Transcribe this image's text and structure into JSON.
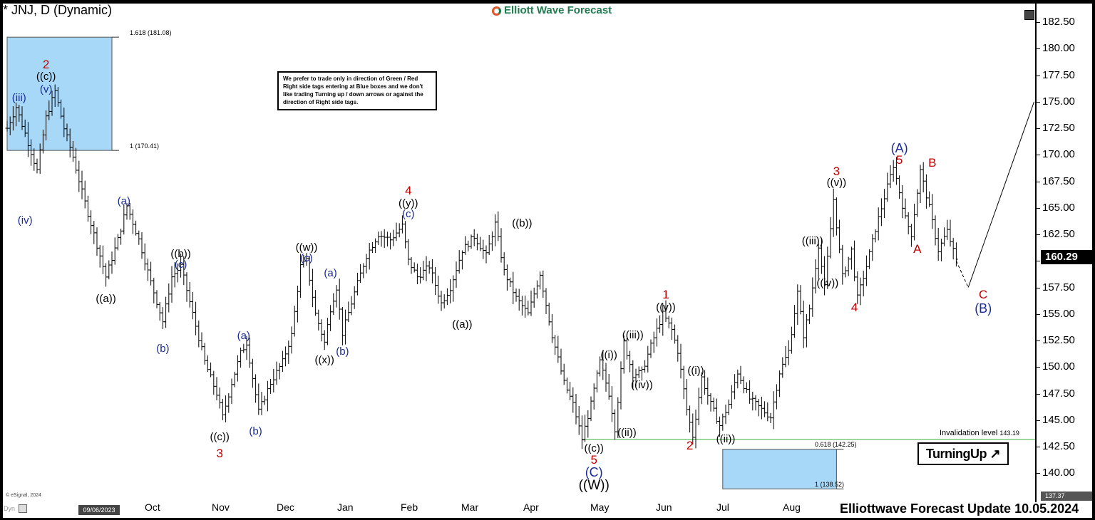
{
  "title": "* JNJ, D (Dynamic)",
  "brand": "Elliott Wave Forecast",
  "note": "We prefer to trade only in direction of Green / Red Right side tags entering at Blue boxes and we don't like trading Turning up / down arrows or against the direction of Right side tags.",
  "fib_labels": [
    "1.618 (181.08)",
    "1 (170.41)",
    "0.618 (142.25)",
    "1 (138.52)"
  ],
  "invalidation": {
    "label": "Invalidation level",
    "value": "143.19"
  },
  "badge": "TurningUp",
  "last_price": "160.29",
  "axis_low_tag": "137.37",
  "credit": "© eSignal, 2024",
  "dyn_label": "Dyn",
  "start_date": "09/06/2023",
  "footer": "Elliottwave Forecast Update 10.05.2024",
  "colors": {
    "blue_box": "#a8d8f8",
    "invalidation_line": "#5fc15f",
    "red_labels": "#c00000",
    "blue_labels": "#1a2a9a"
  },
  "chart_data": {
    "type": "ohlc",
    "symbol": "JNJ",
    "timeframe": "D",
    "ylim": [
      137.37,
      183.5
    ],
    "yticks": [
      140.0,
      142.5,
      145.0,
      147.5,
      150.0,
      152.5,
      155.0,
      157.5,
      160.0,
      162.5,
      165.0,
      167.5,
      170.0,
      172.5,
      175.0,
      177.5,
      180.0,
      182.5
    ],
    "months": [
      "Oct",
      "Nov",
      "Dec",
      "Jan",
      "Feb",
      "Mar",
      "Apr",
      "May",
      "Jun",
      "Jul",
      "Aug"
    ],
    "last_price": 160.29,
    "path": [
      {
        "day": 0,
        "price": 172.5
      },
      {
        "day": 3,
        "price": 174.5
      },
      {
        "day": 6,
        "price": 172.0
      },
      {
        "day": 10,
        "price": 168.5
      },
      {
        "day": 13,
        "price": 173.5
      },
      {
        "day": 16,
        "price": 176.0
      },
      {
        "day": 19,
        "price": 172.5
      },
      {
        "day": 22,
        "price": 169.8
      },
      {
        "day": 25,
        "price": 166.5
      },
      {
        "day": 29,
        "price": 162.5
      },
      {
        "day": 33,
        "price": 158.5
      },
      {
        "day": 37,
        "price": 162.0
      },
      {
        "day": 40,
        "price": 165.2
      },
      {
        "day": 44,
        "price": 162.0
      },
      {
        "day": 48,
        "price": 158.0
      },
      {
        "day": 52,
        "price": 154.3
      },
      {
        "day": 55,
        "price": 158.5
      },
      {
        "day": 58,
        "price": 159.5
      },
      {
        "day": 62,
        "price": 155.0
      },
      {
        "day": 66,
        "price": 150.5
      },
      {
        "day": 70,
        "price": 147.5
      },
      {
        "day": 72,
        "price": 145.3
      },
      {
        "day": 75,
        "price": 148.5
      },
      {
        "day": 78,
        "price": 151.3
      },
      {
        "day": 80,
        "price": 152.3
      },
      {
        "day": 82,
        "price": 149.0
      },
      {
        "day": 84,
        "price": 145.8
      },
      {
        "day": 88,
        "price": 148.5
      },
      {
        "day": 92,
        "price": 150.5
      },
      {
        "day": 95,
        "price": 153.0
      },
      {
        "day": 98,
        "price": 159.5
      },
      {
        "day": 100,
        "price": 160.0
      },
      {
        "day": 103,
        "price": 155.0
      },
      {
        "day": 106,
        "price": 152.3
      },
      {
        "day": 108,
        "price": 155.5
      },
      {
        "day": 110,
        "price": 157.5
      },
      {
        "day": 112,
        "price": 153.2
      },
      {
        "day": 116,
        "price": 157.0
      },
      {
        "day": 120,
        "price": 160.5
      },
      {
        "day": 124,
        "price": 162.5
      },
      {
        "day": 128,
        "price": 162.0
      },
      {
        "day": 132,
        "price": 163.3
      },
      {
        "day": 134,
        "price": 160.0
      },
      {
        "day": 137,
        "price": 158.5
      },
      {
        "day": 141,
        "price": 159.5
      },
      {
        "day": 145,
        "price": 156.0
      },
      {
        "day": 148,
        "price": 157.5
      },
      {
        "day": 152,
        "price": 161.0
      },
      {
        "day": 156,
        "price": 162.3
      },
      {
        "day": 160,
        "price": 160.5
      },
      {
        "day": 163,
        "price": 163.5
      },
      {
        "day": 166,
        "price": 159.0
      },
      {
        "day": 170,
        "price": 156.5
      },
      {
        "day": 174,
        "price": 155.0
      },
      {
        "day": 178,
        "price": 158.8
      },
      {
        "day": 182,
        "price": 153.0
      },
      {
        "day": 186,
        "price": 148.5
      },
      {
        "day": 189,
        "price": 146.5
      },
      {
        "day": 192,
        "price": 143.2
      },
      {
        "day": 195,
        "price": 146.5
      },
      {
        "day": 198,
        "price": 150.5
      },
      {
        "day": 201,
        "price": 147.5
      },
      {
        "day": 203,
        "price": 144.2
      },
      {
        "day": 206,
        "price": 152.3
      },
      {
        "day": 209,
        "price": 149.3
      },
      {
        "day": 212,
        "price": 149.5
      },
      {
        "day": 215,
        "price": 152.0
      },
      {
        "day": 219,
        "price": 155.0
      },
      {
        "day": 222,
        "price": 153.5
      },
      {
        "day": 224,
        "price": 151.5
      },
      {
        "day": 227,
        "price": 146.0
      },
      {
        "day": 229,
        "price": 143.5
      },
      {
        "day": 232,
        "price": 149.0
      },
      {
        "day": 235,
        "price": 146.5
      },
      {
        "day": 238,
        "price": 144.5
      },
      {
        "day": 241,
        "price": 146.5
      },
      {
        "day": 244,
        "price": 149.5
      },
      {
        "day": 248,
        "price": 147.0
      },
      {
        "day": 252,
        "price": 146.0
      },
      {
        "day": 255,
        "price": 145.3
      },
      {
        "day": 258,
        "price": 149.5
      },
      {
        "day": 261,
        "price": 151.5
      },
      {
        "day": 264,
        "price": 157.0
      },
      {
        "day": 266,
        "price": 153.0
      },
      {
        "day": 268,
        "price": 155.5
      },
      {
        "day": 271,
        "price": 161.5
      },
      {
        "day": 273,
        "price": 157.5
      },
      {
        "day": 276,
        "price": 165.8
      },
      {
        "day": 279,
        "price": 158.5
      },
      {
        "day": 282,
        "price": 161.0
      },
      {
        "day": 284,
        "price": 156.5
      },
      {
        "day": 287,
        "price": 159.5
      },
      {
        "day": 290,
        "price": 163.0
      },
      {
        "day": 293,
        "price": 166.0
      },
      {
        "day": 296,
        "price": 169.0
      },
      {
        "day": 298,
        "price": 166.5
      },
      {
        "day": 300,
        "price": 164.0
      },
      {
        "day": 302,
        "price": 162.5
      },
      {
        "day": 305,
        "price": 168.5
      },
      {
        "day": 308,
        "price": 165.0
      },
      {
        "day": 311,
        "price": 161.0
      },
      {
        "day": 314,
        "price": 162.8
      },
      {
        "day": 317,
        "price": 160.0
      }
    ],
    "projection": [
      {
        "day": 317,
        "price": 160.0
      },
      {
        "day": 321,
        "price": 157.5
      },
      {
        "day": 343,
        "price": 175.0
      }
    ],
    "zones": [
      {
        "name": "blue-box-top",
        "day_from": 0,
        "day_to": 35,
        "price_from": 170.41,
        "price_to": 181.08
      },
      {
        "name": "blue-box-bottom",
        "day_from": 239,
        "day_to": 277,
        "price_from": 138.52,
        "price_to": 142.25
      }
    ],
    "invalidation_level": 143.19,
    "wave_labels": [
      {
        "text": "2",
        "style": "red",
        "day": 13,
        "price": 178.5
      },
      {
        "text": "((c))",
        "style": "blk",
        "day": 13,
        "price": 177.3
      },
      {
        "text": "(v)",
        "style": "blu",
        "day": 13,
        "price": 176.1
      },
      {
        "text": "(iii)",
        "style": "blu",
        "day": 4,
        "price": 175.3
      },
      {
        "text": "(iv)",
        "style": "blu",
        "day": 6,
        "price": 163.8
      },
      {
        "text": "(a)",
        "style": "blu",
        "day": 39,
        "price": 165.6
      },
      {
        "text": "((a))",
        "style": "blk",
        "day": 33,
        "price": 156.4
      },
      {
        "text": "((b))",
        "style": "blk",
        "day": 58,
        "price": 160.6
      },
      {
        "text": "(c)",
        "style": "blu",
        "day": 58,
        "price": 159.6
      },
      {
        "text": "(b)",
        "style": "blu",
        "day": 52,
        "price": 151.7
      },
      {
        "text": "(a)",
        "style": "blu",
        "day": 79,
        "price": 152.9
      },
      {
        "text": "((c))",
        "style": "blk",
        "day": 71,
        "price": 143.4
      },
      {
        "text": "3",
        "style": "red",
        "day": 71,
        "price": 141.8
      },
      {
        "text": "(b)",
        "style": "blu",
        "day": 83,
        "price": 143.9
      },
      {
        "text": "((w))",
        "style": "blk",
        "day": 100,
        "price": 161.2
      },
      {
        "text": "(c)",
        "style": "blu",
        "day": 100,
        "price": 160.2
      },
      {
        "text": "(a)",
        "style": "blu",
        "day": 108,
        "price": 158.8
      },
      {
        "text": "((x))",
        "style": "blk",
        "day": 106,
        "price": 150.6
      },
      {
        "text": "(b)",
        "style": "blu",
        "day": 112,
        "price": 151.4
      },
      {
        "text": "4",
        "style": "red",
        "day": 134,
        "price": 166.6
      },
      {
        "text": "((y))",
        "style": "blk",
        "day": 134,
        "price": 165.4
      },
      {
        "text": "(c)",
        "style": "blu",
        "day": 134,
        "price": 164.4
      },
      {
        "text": "((b))",
        "style": "blk",
        "day": 172,
        "price": 163.5
      },
      {
        "text": "((a))",
        "style": "blk",
        "day": 152,
        "price": 154.0
      },
      {
        "text": "((i))",
        "style": "blk",
        "day": 201,
        "price": 151.1
      },
      {
        "text": "((iii))",
        "style": "blk",
        "day": 209,
        "price": 153.0
      },
      {
        "text": "((iv))",
        "style": "blk",
        "day": 212,
        "price": 148.3
      },
      {
        "text": "((ii))",
        "style": "blk",
        "day": 207,
        "price": 143.8
      },
      {
        "text": "((c))",
        "style": "blk",
        "day": 196,
        "price": 142.3
      },
      {
        "text": "5",
        "style": "red",
        "day": 196,
        "price": 141.2
      },
      {
        "text": "(C)",
        "style": "nav",
        "day": 196,
        "price": 140.1
      },
      {
        "text": "((W))",
        "style": "blk-big",
        "day": 196,
        "price": 138.8
      },
      {
        "text": "1",
        "style": "red",
        "day": 220,
        "price": 156.8
      },
      {
        "text": "((v))",
        "style": "blk",
        "day": 220,
        "price": 155.6
      },
      {
        "text": "((i))",
        "style": "blk",
        "day": 230,
        "price": 149.6
      },
      {
        "text": "2",
        "style": "red",
        "day": 228,
        "price": 142.6
      },
      {
        "text": "((ii))",
        "style": "blk",
        "day": 240,
        "price": 143.2
      },
      {
        "text": "((iii))",
        "style": "blk",
        "day": 269,
        "price": 161.8
      },
      {
        "text": "((iv))",
        "style": "blk",
        "day": 274,
        "price": 157.9
      },
      {
        "text": "3",
        "style": "red",
        "day": 277,
        "price": 168.4
      },
      {
        "text": "((v))",
        "style": "blk",
        "day": 277,
        "price": 167.3
      },
      {
        "text": "4",
        "style": "red",
        "day": 283,
        "price": 155.6
      },
      {
        "text": "(A)",
        "style": "nav",
        "day": 298,
        "price": 170.6
      },
      {
        "text": "5",
        "style": "red",
        "day": 298,
        "price": 169.5
      },
      {
        "text": "B",
        "style": "red",
        "day": 309,
        "price": 169.2
      },
      {
        "text": "A",
        "style": "red",
        "day": 304,
        "price": 161.1
      },
      {
        "text": "C",
        "style": "red",
        "day": 326,
        "price": 156.8
      },
      {
        "text": "(B)",
        "style": "nav",
        "day": 326,
        "price": 155.5
      }
    ]
  }
}
